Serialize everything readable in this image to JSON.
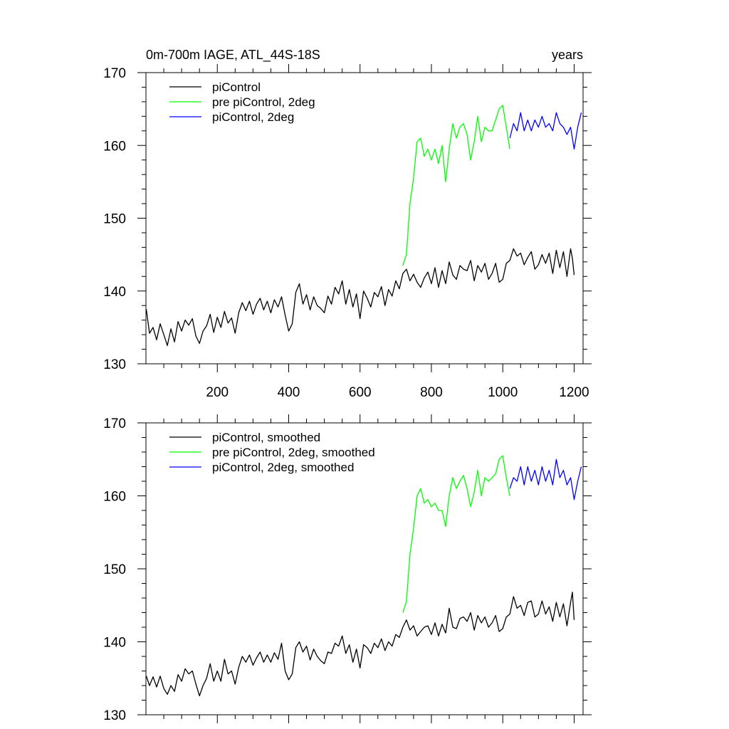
{
  "chart_data": [
    {
      "type": "line",
      "title": "0m-700m IAGE, ATL_44S-18S",
      "right_title": "years",
      "xlim": [
        0,
        1225
      ],
      "ylim": [
        130,
        170
      ],
      "x_ticks": [
        200,
        400,
        600,
        800,
        1000,
        1200
      ],
      "y_ticks": [
        130,
        140,
        150,
        160,
        170
      ],
      "grid": false,
      "legend_position": "top-left",
      "series": [
        {
          "name": "piControl",
          "color": "#000000",
          "x": [
            1,
            10,
            20,
            30,
            40,
            50,
            60,
            70,
            80,
            90,
            100,
            110,
            120,
            130,
            140,
            150,
            160,
            170,
            180,
            190,
            200,
            210,
            220,
            230,
            240,
            250,
            260,
            270,
            280,
            290,
            300,
            310,
            320,
            330,
            340,
            350,
            360,
            370,
            380,
            390,
            400,
            410,
            420,
            430,
            440,
            450,
            460,
            470,
            480,
            490,
            500,
            510,
            520,
            530,
            540,
            550,
            560,
            570,
            580,
            590,
            600,
            610,
            620,
            630,
            640,
            650,
            660,
            670,
            680,
            690,
            700,
            710,
            720,
            730,
            740,
            750,
            760,
            770,
            780,
            790,
            800,
            810,
            820,
            830,
            840,
            850,
            860,
            870,
            880,
            890,
            900,
            910,
            920,
            930,
            940,
            950,
            960,
            970,
            980,
            990,
            1000,
            1010,
            1020,
            1030,
            1040,
            1050,
            1060,
            1070,
            1080,
            1090,
            1100,
            1110,
            1120,
            1130,
            1140,
            1150,
            1160,
            1170,
            1180,
            1190,
            1195,
            1200
          ],
          "y": [
            137.5,
            134.2,
            135.0,
            133.3,
            135.5,
            134.0,
            132.5,
            134.8,
            133.0,
            135.8,
            134.5,
            136.0,
            135.3,
            136.2,
            133.8,
            132.8,
            134.5,
            135.2,
            136.8,
            134.3,
            136.4,
            135.0,
            137.2,
            135.6,
            136.3,
            134.2,
            137.0,
            138.4,
            137.3,
            138.6,
            136.8,
            138.2,
            139.0,
            137.4,
            138.6,
            137.0,
            138.8,
            137.8,
            139.2,
            136.7,
            134.5,
            135.5,
            139.8,
            141.0,
            138.2,
            139.5,
            137.4,
            139.2,
            138.0,
            137.6,
            137.0,
            139.3,
            138.2,
            140.5,
            139.6,
            141.4,
            138.2,
            140.2,
            137.8,
            139.6,
            136.2,
            140.0,
            139.0,
            137.8,
            139.8,
            139.2,
            140.6,
            138.0,
            140.2,
            139.3,
            141.4,
            140.3,
            142.4,
            143.0,
            141.4,
            142.3,
            141.2,
            140.5,
            141.8,
            142.6,
            141.0,
            143.2,
            140.5,
            142.8,
            141.0,
            144.0,
            142.2,
            141.6,
            143.5,
            143.0,
            142.8,
            144.2,
            141.4,
            143.5,
            142.6,
            143.8,
            141.6,
            142.4,
            143.8,
            141.2,
            141.6,
            143.8,
            144.2,
            145.8,
            144.8,
            145.2,
            143.6,
            144.6,
            145.4,
            143.0,
            143.6,
            145.0,
            143.8,
            145.2,
            142.4,
            145.6,
            143.2,
            145.4,
            142.0,
            145.8,
            144.5,
            142.2
          ]
        },
        {
          "name": "pre piControl, 2deg",
          "color": "#00ff00",
          "x": [
            720,
            730,
            740,
            750,
            760,
            770,
            780,
            790,
            800,
            810,
            820,
            830,
            840,
            850,
            860,
            870,
            880,
            890,
            900,
            910,
            920,
            930,
            940,
            950,
            960,
            970,
            980,
            990,
            1000,
            1010,
            1020
          ],
          "y": [
            143.5,
            145.0,
            152.0,
            155.5,
            160.5,
            161.0,
            158.5,
            159.5,
            158.0,
            159.5,
            157.5,
            160.0,
            155.0,
            159.5,
            163.0,
            161.0,
            162.5,
            163.0,
            161.5,
            158.0,
            160.5,
            164.0,
            160.5,
            162.5,
            162.0,
            162.0,
            163.5,
            165.0,
            165.5,
            162.5,
            159.5
          ]
        },
        {
          "name": "piControl, 2deg",
          "color": "#0000ff",
          "x": [
            1020,
            1030,
            1040,
            1050,
            1060,
            1070,
            1080,
            1090,
            1100,
            1110,
            1120,
            1130,
            1140,
            1150,
            1160,
            1170,
            1180,
            1190,
            1200,
            1210,
            1220
          ],
          "y": [
            161.0,
            163.0,
            162.0,
            164.5,
            162.0,
            163.5,
            162.0,
            163.5,
            162.5,
            164.0,
            162.5,
            163.0,
            162.0,
            164.5,
            163.0,
            162.5,
            161.5,
            162.5,
            159.5,
            162.5,
            164.5
          ]
        }
      ]
    },
    {
      "type": "line",
      "title": "",
      "xlim": [
        0,
        1225
      ],
      "ylim": [
        130,
        170
      ],
      "x_ticks": [
        200,
        400,
        600,
        800,
        1000,
        1200
      ],
      "y_ticks": [
        130,
        140,
        150,
        160,
        170
      ],
      "grid": false,
      "legend_position": "top-left",
      "series": [
        {
          "name": "piControl, smoothed",
          "color": "#000000",
          "x": [
            1,
            10,
            20,
            30,
            40,
            50,
            60,
            70,
            80,
            90,
            100,
            110,
            120,
            130,
            140,
            150,
            160,
            170,
            180,
            190,
            200,
            210,
            220,
            230,
            240,
            250,
            260,
            270,
            280,
            290,
            300,
            310,
            320,
            330,
            340,
            350,
            360,
            370,
            380,
            390,
            400,
            410,
            420,
            430,
            440,
            450,
            460,
            470,
            480,
            490,
            500,
            510,
            520,
            530,
            540,
            550,
            560,
            570,
            580,
            590,
            600,
            610,
            620,
            630,
            640,
            650,
            660,
            670,
            680,
            690,
            700,
            710,
            720,
            730,
            740,
            750,
            760,
            770,
            780,
            790,
            800,
            810,
            820,
            830,
            840,
            850,
            860,
            870,
            880,
            890,
            900,
            910,
            920,
            930,
            940,
            950,
            960,
            970,
            980,
            990,
            1000,
            1010,
            1020,
            1030,
            1040,
            1050,
            1060,
            1070,
            1080,
            1090,
            1100,
            1110,
            1120,
            1130,
            1140,
            1150,
            1160,
            1170,
            1180,
            1190,
            1195,
            1200
          ],
          "y": [
            135.3,
            134.0,
            135.2,
            133.8,
            135.3,
            133.6,
            132.8,
            134.0,
            133.2,
            135.5,
            134.6,
            136.3,
            135.6,
            136.0,
            134.2,
            132.6,
            134.0,
            135.0,
            137.0,
            134.6,
            136.0,
            134.6,
            137.6,
            135.6,
            136.0,
            134.2,
            136.5,
            138.0,
            137.2,
            138.2,
            136.8,
            137.8,
            138.6,
            137.2,
            138.2,
            137.2,
            138.5,
            137.6,
            139.8,
            136.0,
            134.8,
            135.6,
            139.2,
            140.0,
            138.6,
            139.4,
            137.5,
            139.0,
            138.0,
            137.4,
            137.0,
            138.6,
            138.4,
            139.8,
            139.4,
            140.8,
            138.4,
            139.6,
            137.2,
            139.0,
            136.4,
            139.6,
            139.2,
            138.4,
            139.8,
            139.2,
            140.4,
            138.8,
            140.0,
            139.4,
            141.0,
            140.6,
            142.0,
            143.0,
            141.6,
            142.2,
            140.8,
            141.4,
            142.0,
            142.2,
            141.0,
            142.6,
            140.8,
            142.4,
            141.2,
            144.6,
            142.0,
            141.8,
            143.2,
            143.4,
            142.8,
            144.0,
            141.6,
            143.6,
            142.6,
            143.4,
            142.0,
            142.6,
            143.6,
            141.4,
            141.8,
            143.4,
            143.8,
            146.2,
            144.6,
            145.0,
            143.6,
            145.4,
            145.6,
            143.4,
            143.8,
            145.6,
            143.8,
            144.8,
            142.8,
            145.4,
            143.4,
            145.2,
            142.2,
            145.4,
            146.8,
            143.0
          ]
        },
        {
          "name": "pre piControl, 2deg, smoothed",
          "color": "#00ff00",
          "x": [
            720,
            730,
            740,
            750,
            760,
            770,
            780,
            790,
            800,
            810,
            820,
            830,
            840,
            850,
            860,
            870,
            880,
            890,
            900,
            910,
            920,
            930,
            940,
            950,
            960,
            970,
            980,
            990,
            1000,
            1010,
            1020
          ],
          "y": [
            144.0,
            145.5,
            152.0,
            155.5,
            160.0,
            161.0,
            159.0,
            159.5,
            158.5,
            159.0,
            158.0,
            158.0,
            155.8,
            160.0,
            162.5,
            161.0,
            162.0,
            162.8,
            161.0,
            158.5,
            160.5,
            163.5,
            160.0,
            162.5,
            162.0,
            162.5,
            163.0,
            165.0,
            165.5,
            162.5,
            160.0
          ]
        },
        {
          "name": "piControl, 2deg, smoothed",
          "color": "#0000ff",
          "x": [
            1020,
            1030,
            1040,
            1050,
            1060,
            1070,
            1080,
            1090,
            1100,
            1110,
            1120,
            1130,
            1140,
            1150,
            1160,
            1170,
            1180,
            1190,
            1200,
            1210,
            1220
          ],
          "y": [
            161.0,
            162.5,
            162.0,
            164.0,
            161.5,
            164.0,
            162.0,
            163.5,
            161.5,
            164.0,
            162.0,
            163.5,
            161.5,
            165.0,
            162.5,
            163.5,
            161.5,
            162.5,
            159.5,
            162.0,
            164.0
          ]
        }
      ]
    }
  ]
}
